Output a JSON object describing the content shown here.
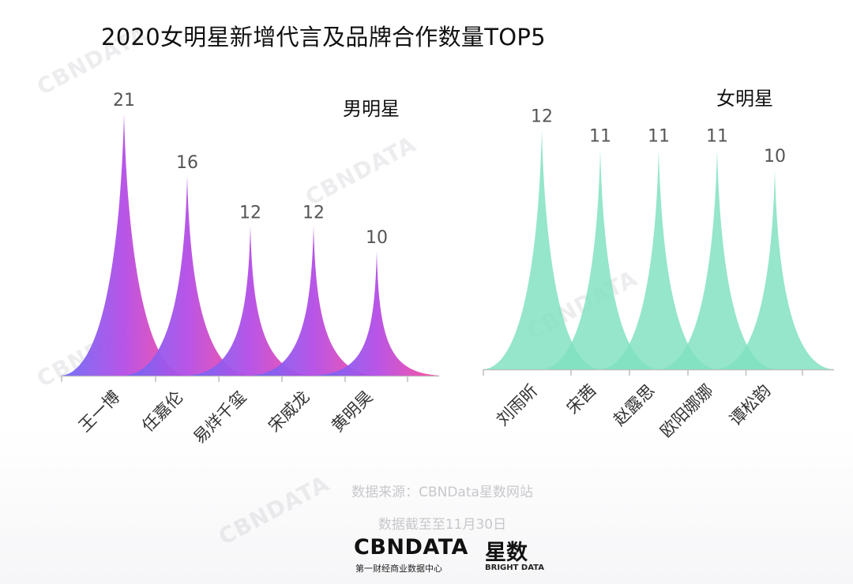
{
  "title": "2020女明星新增代言及品牌合作数量TOP5",
  "chart_data": [
    {
      "type": "area",
      "title": "男明星",
      "categories": [
        "王一博",
        "任嘉伦",
        "易烊千玺",
        "宋威龙",
        "黄明昊"
      ],
      "values": [
        21,
        16,
        12,
        12,
        10
      ],
      "colors": [
        "#6c6cf5",
        "#b44ce6",
        "#ff4f98"
      ]
    },
    {
      "type": "area",
      "title": "女明星",
      "categories": [
        "刘雨昕",
        "宋茜",
        "赵露思",
        "欧阳娜娜",
        "谭松韵"
      ],
      "values": [
        12,
        11,
        11,
        11,
        10
      ],
      "colors": [
        "#7ee0bf"
      ]
    }
  ],
  "source": "数据来源：CBNData星数网站",
  "cutoff": "数据截至至11月30日",
  "logo": {
    "cbn": "CBNDATA",
    "cbn_sub": "第一财经商业数据中心",
    "bright": "星数",
    "bright_sub": "BRIGHT DATA"
  },
  "watermark": "CBNDATA"
}
